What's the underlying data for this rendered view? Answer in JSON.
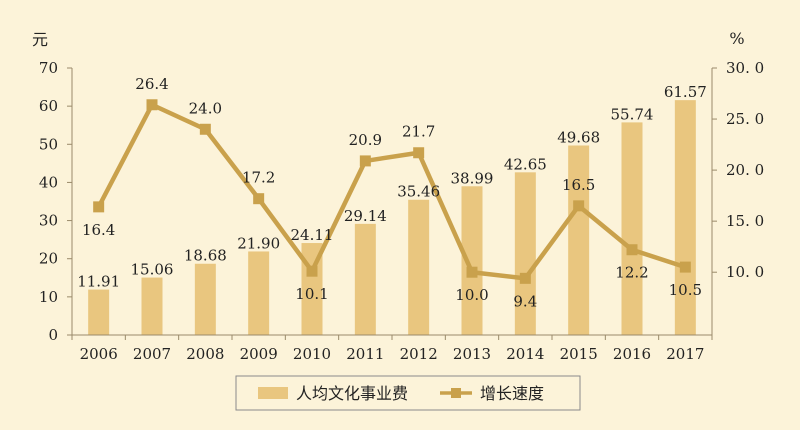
{
  "chart_data": {
    "type": "bar+line",
    "categories": [
      "2006",
      "2007",
      "2008",
      "2009",
      "2010",
      "2011",
      "2012",
      "2013",
      "2014",
      "2015",
      "2016",
      "2017"
    ],
    "series": [
      {
        "name": "人均文化事业费",
        "type": "bar",
        "axis": "left",
        "values": [
          11.91,
          15.06,
          18.68,
          21.9,
          24.11,
          29.14,
          35.46,
          38.99,
          42.65,
          49.68,
          55.74,
          61.57
        ],
        "labels": [
          "11.91",
          "15.06",
          "18.68",
          "21.90",
          "24.11",
          "29.14",
          "35.46",
          "38.99",
          "42.65",
          "49.68",
          "55.74",
          "61.57"
        ]
      },
      {
        "name": "增长速度",
        "type": "line",
        "axis": "right",
        "values": [
          16.4,
          26.4,
          24.0,
          17.2,
          10.1,
          20.9,
          21.7,
          10.0,
          9.4,
          16.5,
          12.2,
          10.5
        ],
        "labels": [
          "16.4",
          "26.4",
          "24.0",
          "17.2",
          "10.1",
          "20.9",
          "21.7",
          "10.0",
          "9.4",
          "16.5",
          "12.2",
          "10.5"
        ]
      }
    ],
    "y_left": {
      "unit": "元",
      "ylim": [
        0,
        70
      ],
      "ticks": [
        0,
        10,
        20,
        30,
        40,
        50,
        60,
        70
      ],
      "tick_labels": [
        "0",
        "10",
        "20",
        "30",
        "40",
        "50",
        "60",
        "70"
      ]
    },
    "y_right": {
      "unit": "%",
      "ylim": [
        3.85,
        30.0
      ],
      "ticks": [
        10,
        15,
        20,
        25,
        30
      ],
      "tick_labels": [
        "10. 0",
        "15. 0",
        "20. 0",
        "25. 0",
        "30. 0"
      ]
    },
    "legend": "bottom",
    "grid": false,
    "colors": {
      "bar": "#e9c67f",
      "line": "#c9a14c",
      "background": "#fcf3d9",
      "axis": "#9a8a6a"
    }
  }
}
